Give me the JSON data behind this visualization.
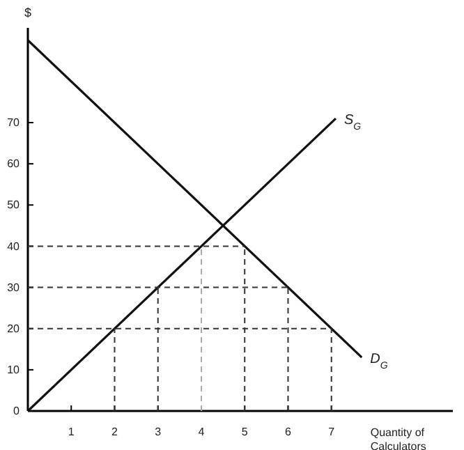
{
  "chart_data": {
    "type": "line",
    "ylabel": "$",
    "xlabel": "Quantity of Calculators",
    "xlim": [
      0,
      9.8
    ],
    "ylim": [
      0,
      93
    ],
    "xticks": [
      1,
      2,
      3,
      4,
      5,
      6,
      7
    ],
    "yticks": [
      0,
      10,
      20,
      30,
      40,
      50,
      60,
      70
    ],
    "grid": false,
    "legend": false,
    "marker": "none",
    "series": [
      {
        "name": "S$_{G}$",
        "color": "#111111",
        "x": [
          0,
          7.1
        ],
        "values": [
          0,
          71
        ],
        "line_style": "solid"
      },
      {
        "name": "D$_{G}$",
        "color": "#111111",
        "x": [
          0,
          7.7
        ],
        "values": [
          90,
          13
        ],
        "line_style": "solid"
      },
      {
        "color": "#333333",
        "x": [
          0,
          7
        ],
        "values": [
          20,
          20
        ],
        "line_style": "dashed"
      },
      {
        "color": "#333333",
        "x": [
          0,
          6
        ],
        "values": [
          30,
          30
        ],
        "line_style": "dashed"
      },
      {
        "color": "#333333",
        "x": [
          0,
          5
        ],
        "values": [
          40,
          40
        ],
        "line_style": "dashed"
      },
      {
        "color": "#333333",
        "x": [
          2,
          2
        ],
        "values": [
          0,
          20
        ],
        "line_style": "dashed"
      },
      {
        "color": "#333333",
        "x": [
          3,
          3
        ],
        "values": [
          0,
          30
        ],
        "line_style": "dashed"
      },
      {
        "color": "#aaaaaa",
        "x": [
          4,
          4
        ],
        "values": [
          0,
          40
        ],
        "line_style": "dashed"
      },
      {
        "color": "#333333",
        "x": [
          5,
          5
        ],
        "values": [
          0,
          40
        ],
        "line_style": "dashed"
      },
      {
        "color": "#333333",
        "x": [
          6,
          6
        ],
        "values": [
          0,
          30
        ],
        "line_style": "dashed"
      },
      {
        "color": "#333333",
        "x": [
          7,
          7
        ],
        "values": [
          0,
          20
        ],
        "line_style": "dashed"
      }
    ]
  }
}
